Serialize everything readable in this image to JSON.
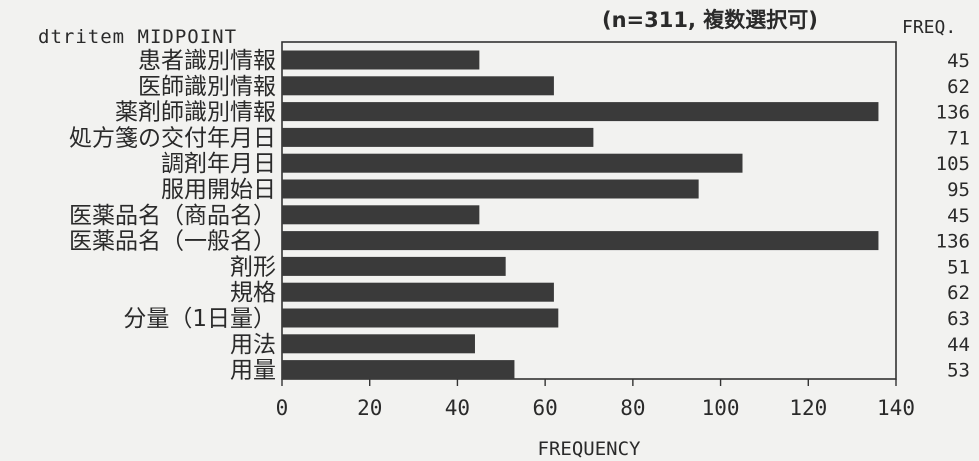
{
  "chart_data": {
    "type": "bar",
    "orientation": "horizontal",
    "category_header": "dtritem MIDPOINT",
    "note": "(n=311, 複数選択可)",
    "value_header": "FREQ.",
    "xlabel": "FREQUENCY",
    "xlim": [
      0,
      140
    ],
    "xticks": [
      0,
      20,
      40,
      60,
      80,
      100,
      120,
      140
    ],
    "grid": false,
    "bar_color": "#3a3a3a",
    "categories": [
      "患者識別情報",
      "医師識別情報",
      "薬剤師識別情報",
      "処方箋の交付年月日",
      "調剤年月日",
      "服用開始日",
      "医薬品名（商品名）",
      "医薬品名（一般名）",
      "剤形",
      "規格",
      "分量（1日量）",
      "用法",
      "用量"
    ],
    "values": [
      45,
      62,
      136,
      71,
      105,
      95,
      45,
      136,
      51,
      62,
      63,
      44,
      53
    ]
  }
}
